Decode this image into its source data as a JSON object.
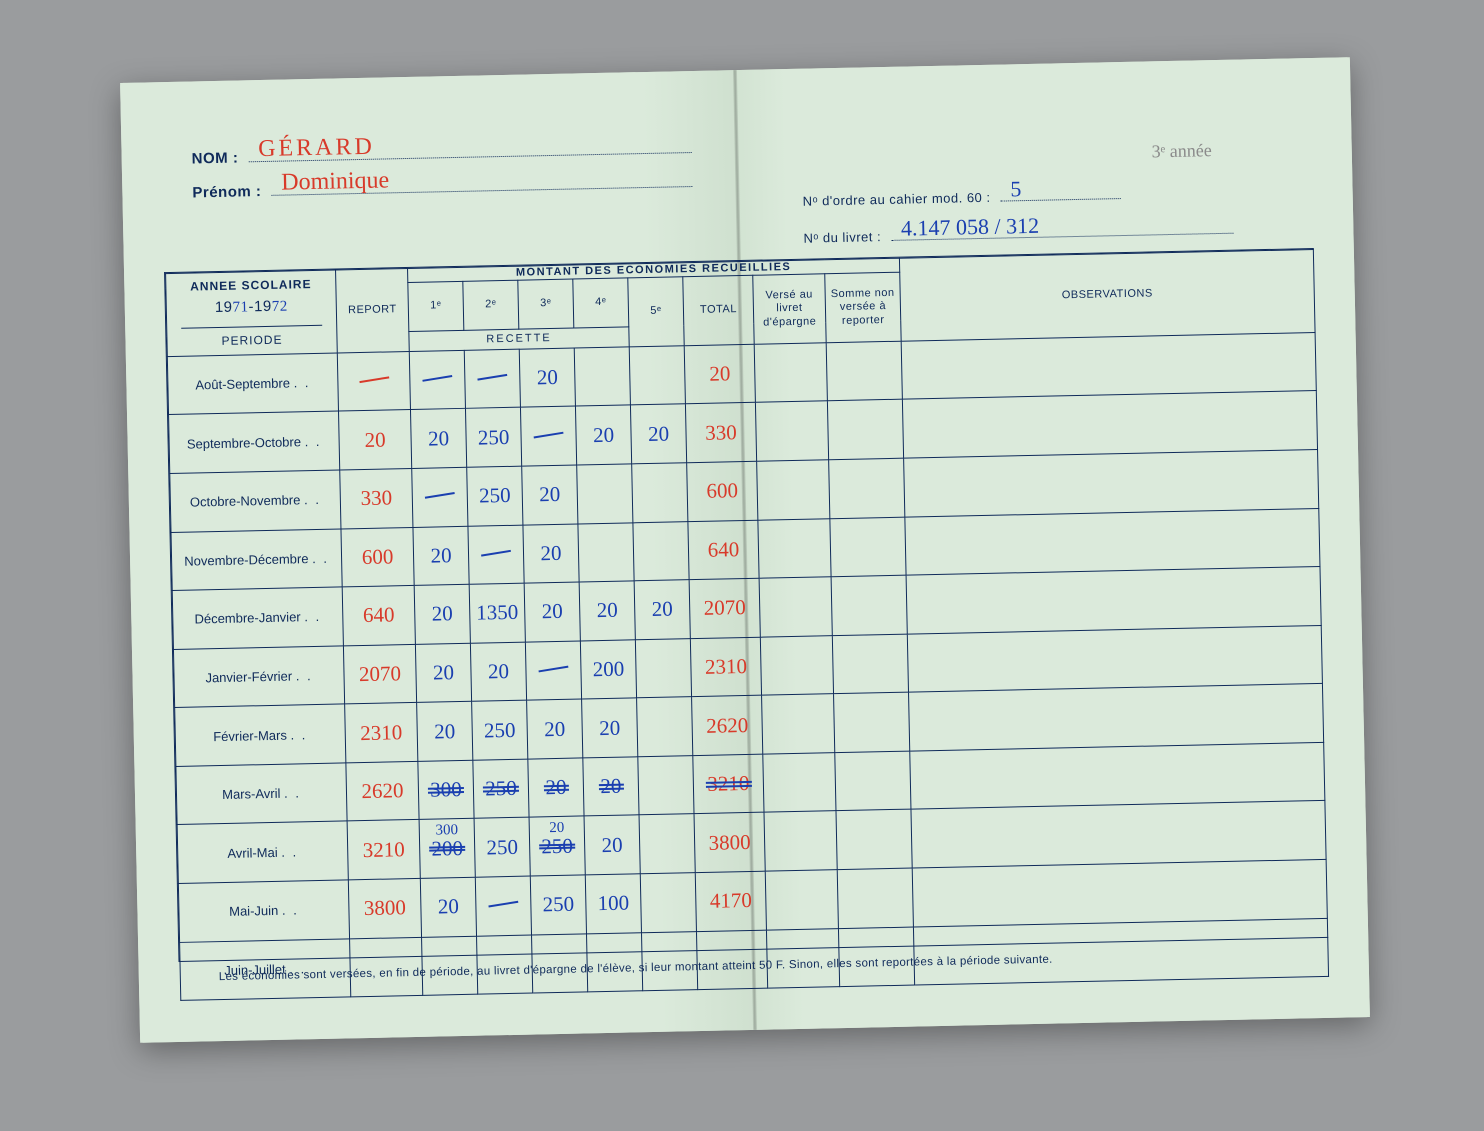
{
  "header": {
    "nom_label": "NOM :",
    "nom_value": "GÉRARD",
    "prenom_label": "Prénom :",
    "prenom_value": "Dominique",
    "pencil_note": "3ᵉ année",
    "ordre_label": "Nᵒ d'ordre au cahier mod. 60 :",
    "ordre_value": "5",
    "livret_label": "Nᵒ du livret :",
    "livret_value": "4.147 058 / 312"
  },
  "table_headers": {
    "annee_scolaire": "ANNEE SCOLAIRE",
    "year_prefix1": "19",
    "year_hw1": "71",
    "year_sep": "-19",
    "year_hw2": "72",
    "periode": "PERIODE",
    "report": "REPORT",
    "montant": "MONTANT DES ECONOMIES RECUEILLIES",
    "recette": "RECETTE",
    "cols": [
      "1ᵉ",
      "2ᵉ",
      "3ᵉ",
      "4ᵉ",
      "5ᵉ"
    ],
    "total": "TOTAL",
    "verse": "Versé au livret d'épargne",
    "somme": "Somme non versée à reporter",
    "observations": "OBSERVATIONS"
  },
  "rows": [
    {
      "periode": "Août-Septembre",
      "report": {
        "t": "dash",
        "c": "red"
      },
      "r1": {
        "t": "dash",
        "c": "blue"
      },
      "r2": {
        "t": "dash",
        "c": "blue"
      },
      "r3": {
        "t": "v",
        "c": "blue",
        "v": "20"
      },
      "r4": null,
      "r5": null,
      "total": {
        "t": "v",
        "c": "red",
        "v": "20"
      }
    },
    {
      "periode": "Septembre-Octobre",
      "report": {
        "t": "v",
        "c": "red",
        "v": "20"
      },
      "r1": {
        "t": "v",
        "c": "blue",
        "v": "20"
      },
      "r2": {
        "t": "v",
        "c": "blue",
        "v": "250"
      },
      "r3": {
        "t": "dash",
        "c": "blue"
      },
      "r4": {
        "t": "v",
        "c": "blue",
        "v": "20"
      },
      "r5": {
        "t": "v",
        "c": "blue",
        "v": "20"
      },
      "total": {
        "t": "v",
        "c": "red",
        "v": "330"
      }
    },
    {
      "periode": "Octobre-Novembre",
      "report": {
        "t": "v",
        "c": "red",
        "v": "330"
      },
      "r1": {
        "t": "dash",
        "c": "blue"
      },
      "r2": {
        "t": "v",
        "c": "blue",
        "v": "250"
      },
      "r3": {
        "t": "v",
        "c": "blue",
        "v": "20"
      },
      "r4": null,
      "r5": null,
      "total": {
        "t": "v",
        "c": "red",
        "v": "600"
      }
    },
    {
      "periode": "Novembre-Décembre",
      "report": {
        "t": "v",
        "c": "red",
        "v": "600"
      },
      "r1": {
        "t": "v",
        "c": "blue",
        "v": "20"
      },
      "r2": {
        "t": "dash",
        "c": "blue"
      },
      "r3": {
        "t": "v",
        "c": "blue",
        "v": "20"
      },
      "r4": null,
      "r5": null,
      "total": {
        "t": "v",
        "c": "red",
        "v": "640"
      }
    },
    {
      "periode": "Décembre-Janvier",
      "report": {
        "t": "v",
        "c": "red",
        "v": "640"
      },
      "r1": {
        "t": "v",
        "c": "blue",
        "v": "20"
      },
      "r2": {
        "t": "v",
        "c": "blue",
        "v": "1350"
      },
      "r3": {
        "t": "v",
        "c": "blue",
        "v": "20"
      },
      "r4": {
        "t": "v",
        "c": "blue",
        "v": "20"
      },
      "r5": {
        "t": "v",
        "c": "blue",
        "v": "20"
      },
      "total": {
        "t": "v",
        "c": "red",
        "v": "2070"
      }
    },
    {
      "periode": "Janvier-Février",
      "report": {
        "t": "v",
        "c": "red",
        "v": "2070"
      },
      "r1": {
        "t": "v",
        "c": "blue",
        "v": "20"
      },
      "r2": {
        "t": "v",
        "c": "blue",
        "v": "20"
      },
      "r3": {
        "t": "dash",
        "c": "blue"
      },
      "r4": {
        "t": "v",
        "c": "blue",
        "v": "200"
      },
      "r5": null,
      "total": {
        "t": "v",
        "c": "red",
        "v": "2310"
      }
    },
    {
      "periode": "Février-Mars",
      "report": {
        "t": "v",
        "c": "red",
        "v": "2310"
      },
      "r1": {
        "t": "v",
        "c": "blue",
        "v": "20"
      },
      "r2": {
        "t": "v",
        "c": "blue",
        "v": "250"
      },
      "r3": {
        "t": "v",
        "c": "blue",
        "v": "20"
      },
      "r4": {
        "t": "v",
        "c": "blue",
        "v": "20"
      },
      "r5": null,
      "total": {
        "t": "v",
        "c": "red",
        "v": "2620"
      }
    },
    {
      "periode": "Mars-Avril",
      "report": {
        "t": "v",
        "c": "red",
        "v": "2620"
      },
      "r1": {
        "t": "s",
        "c": "blue",
        "v": "300"
      },
      "r2": {
        "t": "s",
        "c": "blue",
        "v": "250"
      },
      "r3": {
        "t": "s",
        "c": "blue",
        "v": "20"
      },
      "r4": {
        "t": "s",
        "c": "blue",
        "v": "20"
      },
      "r5": null,
      "total": {
        "t": "s",
        "c": "red",
        "v": "3210"
      },
      "rowstruck": true
    },
    {
      "periode": "Avril-Mai",
      "report": {
        "t": "v",
        "c": "red",
        "v": "3210"
      },
      "r1": {
        "t": "sfix",
        "c": "blue",
        "v": "200",
        "above": "300"
      },
      "r2": {
        "t": "v",
        "c": "blue",
        "v": "250"
      },
      "r3": {
        "t": "sfix",
        "c": "blue",
        "v": "250",
        "above": "20"
      },
      "r4": {
        "t": "v",
        "c": "blue",
        "v": "20"
      },
      "r5": null,
      "total": {
        "t": "v",
        "c": "red",
        "v": "3800"
      }
    },
    {
      "periode": "Mai-Juin",
      "report": {
        "t": "v",
        "c": "red",
        "v": "3800"
      },
      "r1": {
        "t": "v",
        "c": "blue",
        "v": "20"
      },
      "r2": {
        "t": "dash",
        "c": "blue"
      },
      "r3": {
        "t": "v",
        "c": "blue",
        "v": "250"
      },
      "r4": {
        "t": "v",
        "c": "blue",
        "v": "100"
      },
      "r5": null,
      "total": {
        "t": "v",
        "c": "red",
        "v": "4170"
      }
    },
    {
      "periode": "Juin-Juillet",
      "report": null,
      "r1": null,
      "r2": null,
      "r3": null,
      "r4": null,
      "r5": null,
      "total": null
    }
  ],
  "footer": "Les économies sont versées, en fin de période, au livret d'épargne de l'élève, si leur montant atteint 50 F. Sinon, elles sont reportées à la période suivante.",
  "colors": {
    "ink": "#0f2a5a",
    "red_pen": "#d83a2a",
    "blue_pen": "#1a3fb0",
    "paper": "#dbeadb",
    "background": "#9a9c9e"
  }
}
